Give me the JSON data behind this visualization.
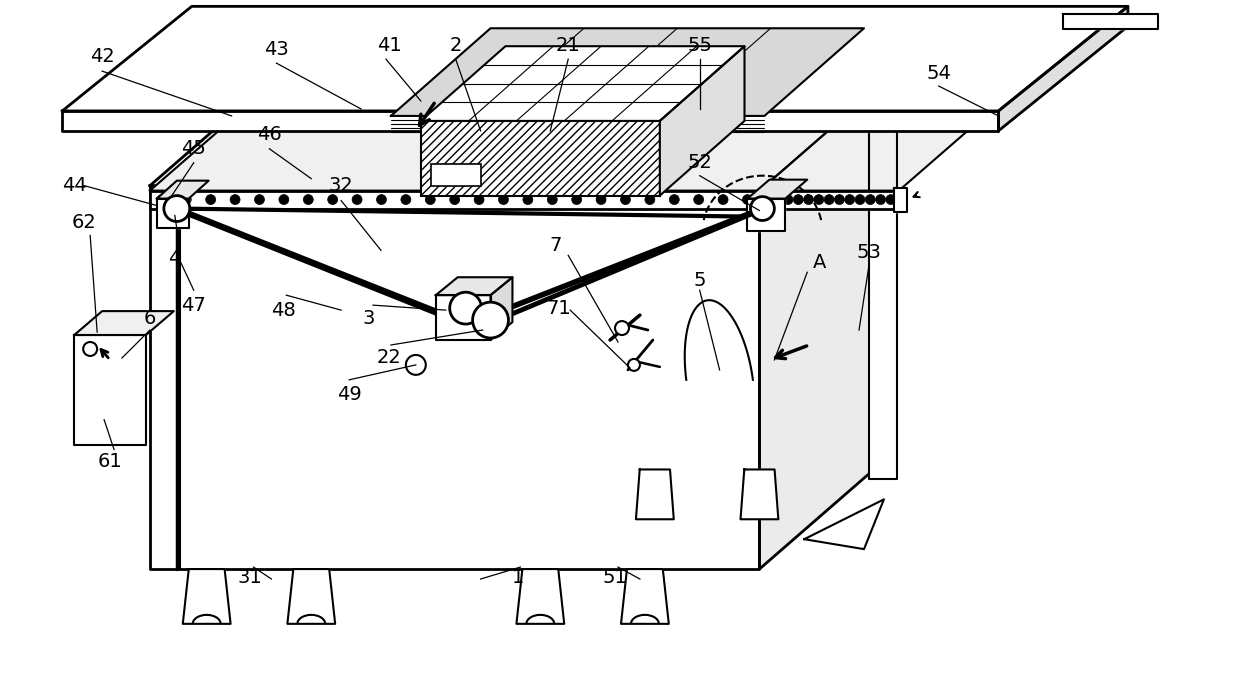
{
  "bg_color": "#ffffff",
  "lc": "#000000",
  "lw": 1.5,
  "fig_w": 12.4,
  "fig_h": 6.81,
  "dpi": 100
}
